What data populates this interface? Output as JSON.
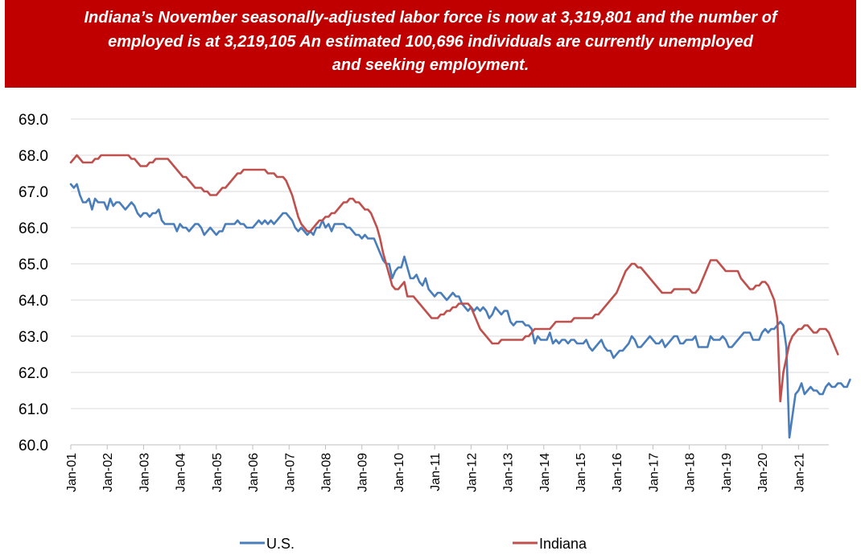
{
  "banner": {
    "line1": "Indiana’s November seasonally-adjusted labor force is now at 3,319,801 and the number of",
    "line2": "employed is at 3,219,105 An estimated 100,696 individuals are currently unemployed",
    "line3": "and seeking employment.",
    "bg_color": "#c00000"
  },
  "chart_data": {
    "type": "line",
    "title": "",
    "xlabel": "",
    "ylabel": "",
    "ylim": [
      60.0,
      69.0
    ],
    "yticks": [
      "60.0",
      "61.0",
      "62.0",
      "63.0",
      "64.0",
      "65.0",
      "66.0",
      "67.0",
      "68.0",
      "69.0"
    ],
    "xticks": [
      "Jan-01",
      "Jan-02",
      "Jan-03",
      "Jan-04",
      "Jan-05",
      "Jan-06",
      "Jan-07",
      "Jan-08",
      "Jan-09",
      "Jan-10",
      "Jan-11",
      "Jan-12",
      "Jan-13",
      "Jan-14",
      "Jan-15",
      "Jan-16",
      "Jan-17",
      "Jan-18",
      "Jan-19",
      "Jan-20",
      "Jan-21"
    ],
    "x_start": "Jan-01",
    "months": 251,
    "grid": true,
    "legend_position": "bottom",
    "series": [
      {
        "name": "U.S.",
        "color": "#4a7ebb",
        "values": [
          67.2,
          67.1,
          67.2,
          66.9,
          66.7,
          66.7,
          66.8,
          66.5,
          66.8,
          66.7,
          66.7,
          66.7,
          66.5,
          66.8,
          66.6,
          66.7,
          66.7,
          66.6,
          66.5,
          66.6,
          66.7,
          66.6,
          66.4,
          66.3,
          66.4,
          66.4,
          66.3,
          66.4,
          66.4,
          66.5,
          66.2,
          66.1,
          66.1,
          66.1,
          66.1,
          65.9,
          66.1,
          66.0,
          66.0,
          65.9,
          66.0,
          66.1,
          66.1,
          66.0,
          65.8,
          65.9,
          66.0,
          65.9,
          65.8,
          65.9,
          65.9,
          66.1,
          66.1,
          66.1,
          66.1,
          66.2,
          66.1,
          66.1,
          66.0,
          66.0,
          66.0,
          66.1,
          66.2,
          66.1,
          66.2,
          66.1,
          66.2,
          66.1,
          66.2,
          66.3,
          66.4,
          66.4,
          66.3,
          66.2,
          66.0,
          65.9,
          66.0,
          65.9,
          65.8,
          65.9,
          65.8,
          66.0,
          66.0,
          66.2,
          66.0,
          66.1,
          65.9,
          66.1,
          66.1,
          66.1,
          66.1,
          66.0,
          66.0,
          65.9,
          65.8,
          65.8,
          65.7,
          65.8,
          65.7,
          65.7,
          65.7,
          65.5,
          65.3,
          65.1,
          65.0,
          65.0,
          64.6,
          64.8,
          64.9,
          64.9,
          65.2,
          64.9,
          64.6,
          64.6,
          64.7,
          64.5,
          64.4,
          64.6,
          64.3,
          64.2,
          64.1,
          64.2,
          64.2,
          64.1,
          64.0,
          64.1,
          64.2,
          64.1,
          64.1,
          63.9,
          63.8,
          63.7,
          63.8,
          63.7,
          63.8,
          63.7,
          63.8,
          63.7,
          63.5,
          63.6,
          63.8,
          63.7,
          63.6,
          63.7,
          63.7,
          63.4,
          63.3,
          63.4,
          63.4,
          63.4,
          63.3,
          63.3,
          63.2,
          62.8,
          63.0,
          62.9,
          62.9,
          62.9,
          63.1,
          62.8,
          62.9,
          62.8,
          62.9,
          62.9,
          62.8,
          62.9,
          62.9,
          62.8,
          62.8,
          62.8,
          62.9,
          62.7,
          62.6,
          62.7,
          62.8,
          62.9,
          62.7,
          62.6,
          62.6,
          62.4,
          62.5,
          62.6,
          62.6,
          62.7,
          62.8,
          63.0,
          62.9,
          62.7,
          62.7,
          62.8,
          62.9,
          63.0,
          62.9,
          62.8,
          62.8,
          62.9,
          62.7,
          62.8,
          62.9,
          63.0,
          63.0,
          62.8,
          62.8,
          62.9,
          62.9,
          62.9,
          63.0,
          62.7,
          62.7,
          62.7,
          62.7,
          63.0,
          62.9,
          62.9,
          62.9,
          63.0,
          62.9,
          62.7,
          62.7,
          62.8,
          62.9,
          63.0,
          63.1,
          63.1,
          63.1,
          62.9,
          62.9,
          62.9,
          63.1,
          63.2,
          63.1,
          63.2,
          63.2,
          63.3,
          63.4,
          63.3,
          62.7,
          60.2,
          60.8,
          61.4,
          61.5,
          61.7,
          61.4,
          61.5,
          61.6,
          61.5,
          61.5,
          61.4,
          61.4,
          61.6,
          61.7,
          61.6,
          61.6,
          61.7,
          61.7,
          61.6,
          61.6,
          61.8
        ]
      },
      {
        "name": "Indiana",
        "color": "#c0504d",
        "values": [
          67.8,
          67.9,
          68.0,
          67.9,
          67.8,
          67.8,
          67.8,
          67.8,
          67.9,
          67.9,
          68.0,
          68.0,
          68.0,
          68.0,
          68.0,
          68.0,
          68.0,
          68.0,
          68.0,
          68.0,
          67.9,
          67.9,
          67.8,
          67.7,
          67.7,
          67.7,
          67.8,
          67.8,
          67.9,
          67.9,
          67.9,
          67.9,
          67.9,
          67.8,
          67.7,
          67.6,
          67.5,
          67.4,
          67.4,
          67.3,
          67.2,
          67.1,
          67.1,
          67.1,
          67.0,
          67.0,
          66.9,
          66.9,
          66.9,
          67.0,
          67.1,
          67.1,
          67.2,
          67.3,
          67.4,
          67.5,
          67.5,
          67.6,
          67.6,
          67.6,
          67.6,
          67.6,
          67.6,
          67.6,
          67.6,
          67.5,
          67.5,
          67.5,
          67.4,
          67.4,
          67.4,
          67.3,
          67.1,
          66.9,
          66.6,
          66.3,
          66.1,
          66.0,
          65.9,
          65.9,
          66.0,
          66.1,
          66.2,
          66.2,
          66.3,
          66.3,
          66.4,
          66.4,
          66.5,
          66.6,
          66.7,
          66.7,
          66.8,
          66.8,
          66.7,
          66.7,
          66.6,
          66.5,
          66.5,
          66.4,
          66.2,
          66.0,
          65.7,
          65.3,
          65.0,
          64.7,
          64.4,
          64.3,
          64.3,
          64.4,
          64.5,
          64.1,
          64.1,
          64.1,
          64.0,
          63.9,
          63.8,
          63.7,
          63.6,
          63.5,
          63.5,
          63.5,
          63.6,
          63.6,
          63.7,
          63.7,
          63.8,
          63.8,
          63.9,
          63.9,
          63.9,
          63.9,
          63.8,
          63.6,
          63.4,
          63.2,
          63.1,
          63.0,
          62.9,
          62.8,
          62.8,
          62.8,
          62.9,
          62.9,
          62.9,
          62.9,
          62.9,
          62.9,
          62.9,
          62.9,
          63.0,
          63.0,
          63.1,
          63.2,
          63.2,
          63.2,
          63.2,
          63.2,
          63.2,
          63.3,
          63.4,
          63.4,
          63.4,
          63.4,
          63.4,
          63.4,
          63.5,
          63.5,
          63.5,
          63.5,
          63.5,
          63.5,
          63.5,
          63.6,
          63.6,
          63.7,
          63.8,
          63.9,
          64.0,
          64.1,
          64.2,
          64.4,
          64.6,
          64.8,
          64.9,
          65.0,
          65.0,
          64.9,
          64.9,
          64.8,
          64.7,
          64.6,
          64.5,
          64.4,
          64.3,
          64.2,
          64.2,
          64.2,
          64.2,
          64.3,
          64.3,
          64.3,
          64.3,
          64.3,
          64.3,
          64.2,
          64.2,
          64.3,
          64.5,
          64.7,
          64.9,
          65.1,
          65.1,
          65.1,
          65.0,
          64.9,
          64.8,
          64.8,
          64.8,
          64.8,
          64.8,
          64.6,
          64.5,
          64.4,
          64.3,
          64.3,
          64.4,
          64.4,
          64.5,
          64.5,
          64.4,
          64.2,
          64.0,
          63.5,
          61.2,
          62.0,
          62.4,
          62.8,
          63.0,
          63.1,
          63.2,
          63.2,
          63.3,
          63.3,
          63.2,
          63.1,
          63.1,
          63.2,
          63.2,
          63.2,
          63.1,
          62.9,
          62.7,
          62.5
        ]
      }
    ]
  }
}
